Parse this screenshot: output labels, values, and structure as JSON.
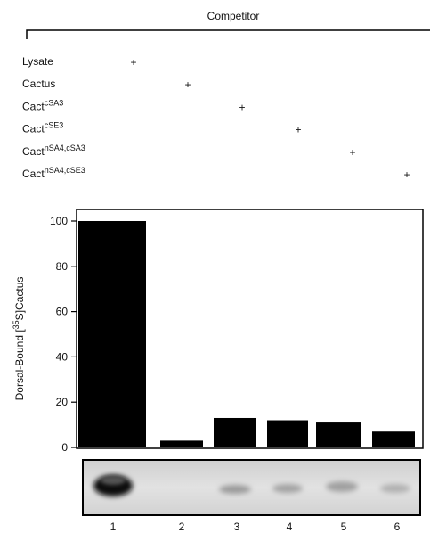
{
  "competitor": {
    "title": "Competitor",
    "rows": [
      {
        "label": "Lysate",
        "mark": "+"
      },
      {
        "label": "Cactus",
        "mark": "+"
      },
      {
        "label": "Cact",
        "sup": "cSA3",
        "mark": "+"
      },
      {
        "label": "Cact",
        "sup": "cSE3",
        "mark": "+"
      },
      {
        "label": "Cact",
        "sup": "nSA4,cSA3",
        "mark": "+"
      },
      {
        "label": "Cact",
        "sup": "nSA4,cSE3",
        "mark": "+"
      }
    ]
  },
  "chart_data": {
    "type": "bar",
    "ylabel": [
      "Dorsal-Bound [",
      "35",
      "S]Cactus"
    ],
    "categories": [
      "1",
      "2",
      "3",
      "4",
      "5",
      "6"
    ],
    "values": [
      100,
      3,
      13,
      12,
      11,
      7
    ],
    "color": "#000000",
    "ylim": [
      0,
      105
    ],
    "yticks": [
      0,
      20,
      40,
      60,
      80,
      100
    ]
  }
}
